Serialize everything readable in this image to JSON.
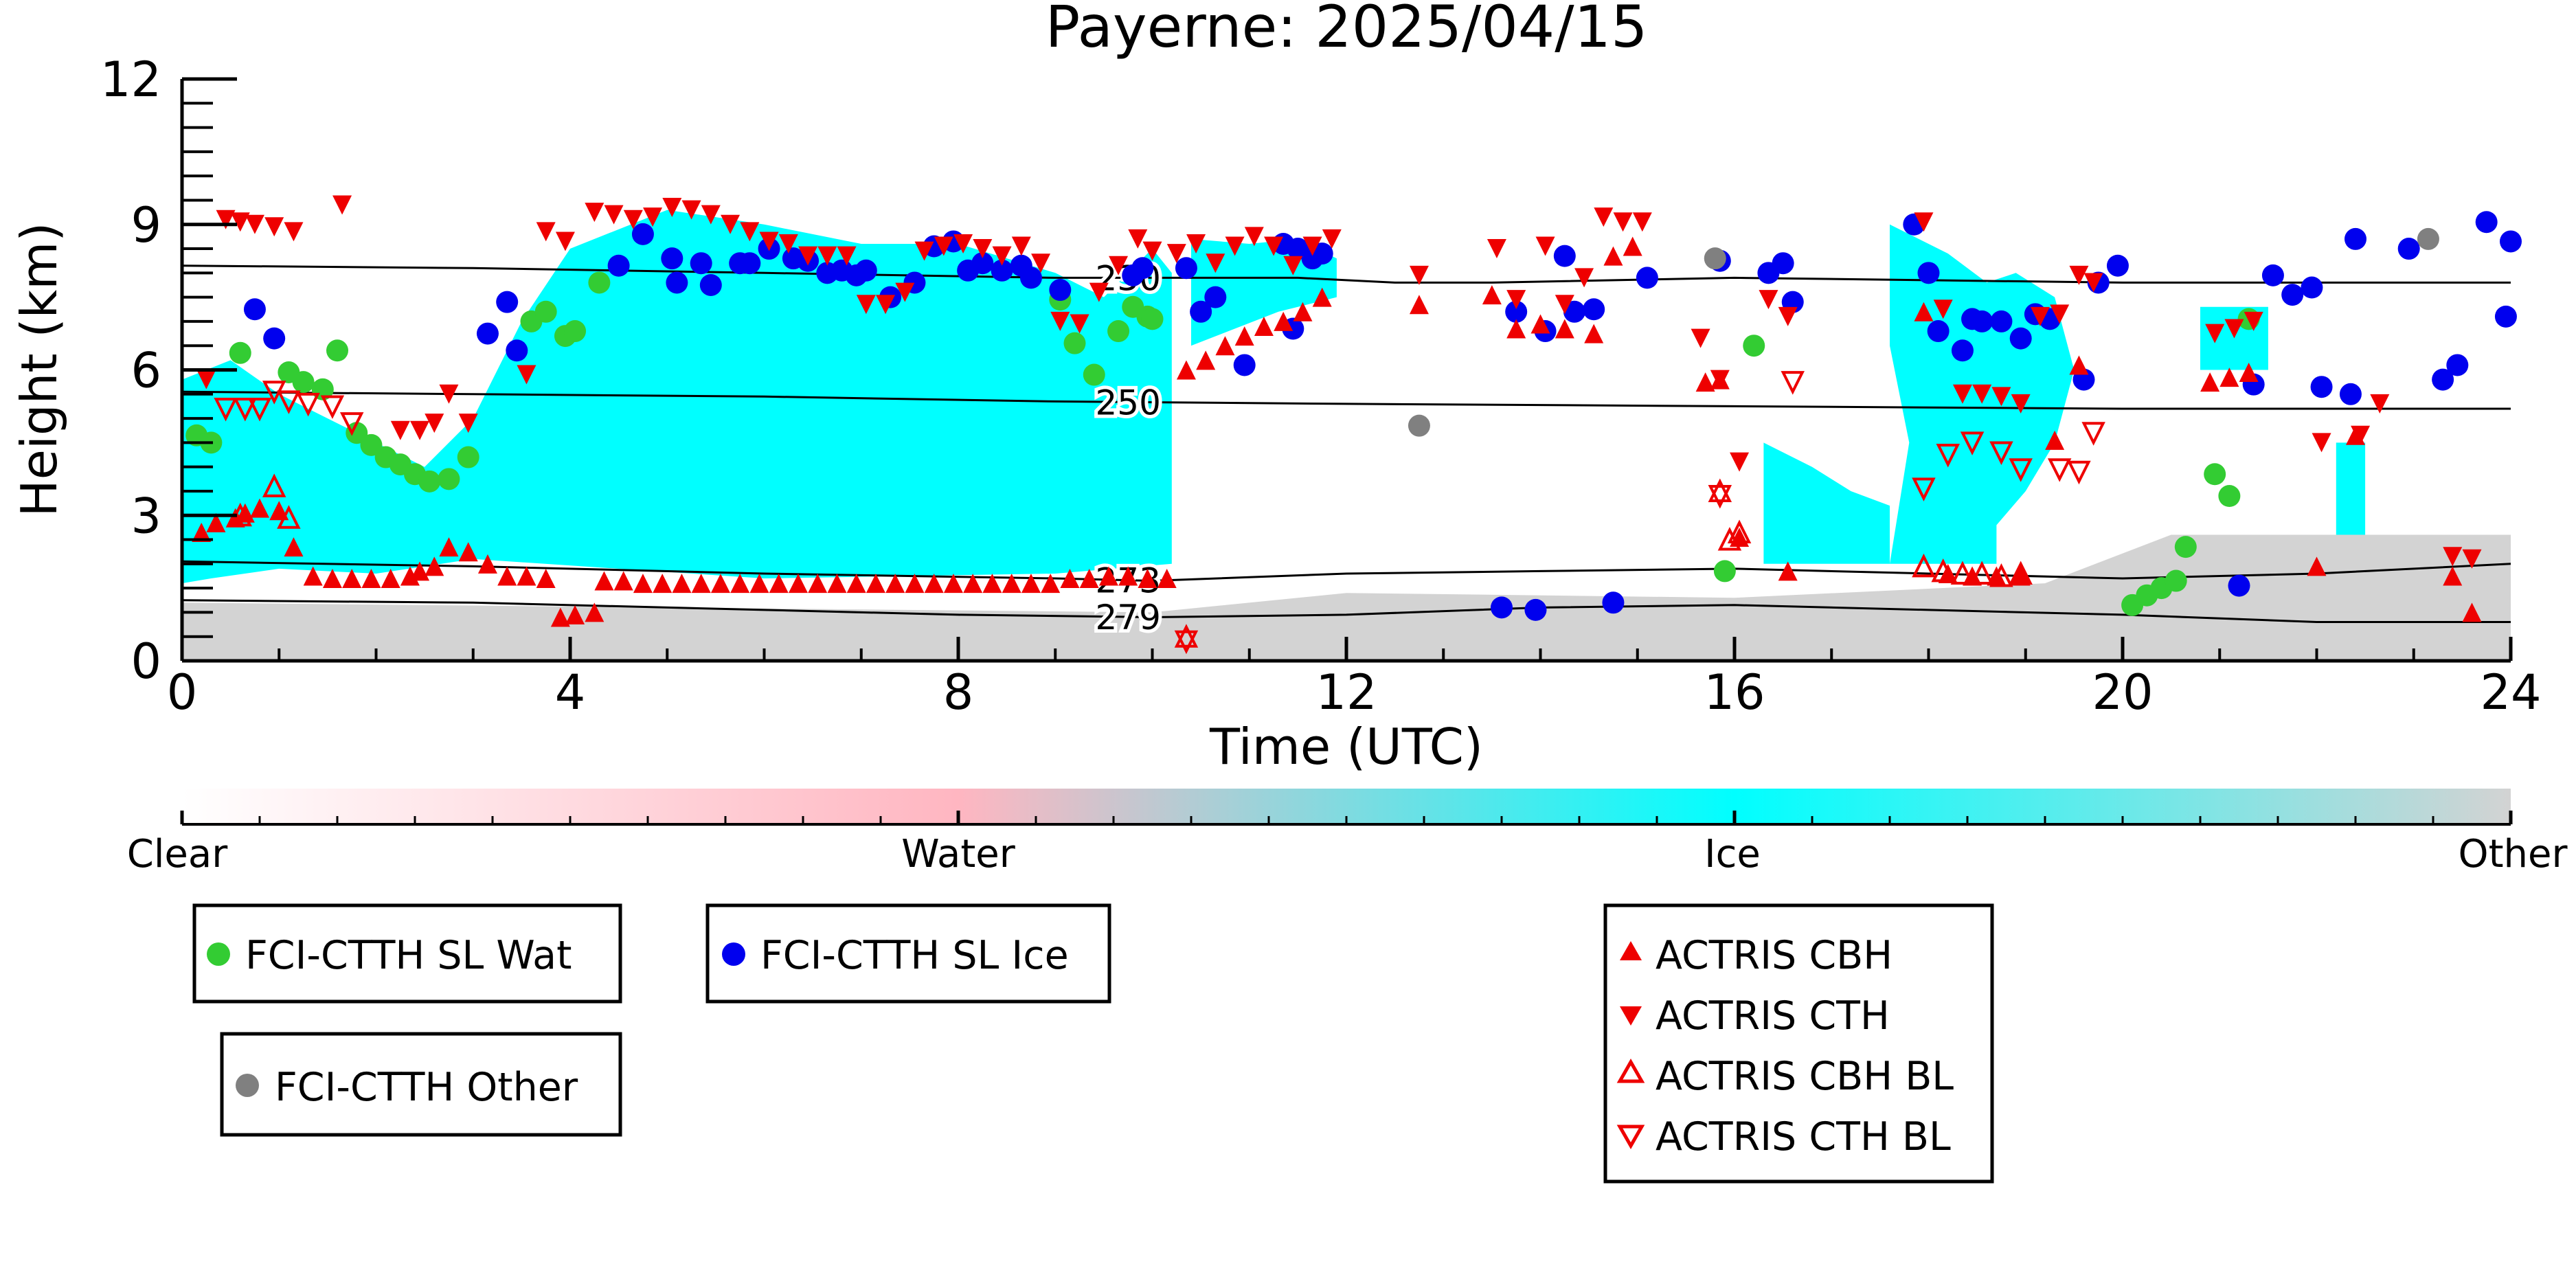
{
  "chart_data": {
    "type": "scatter",
    "title": "Payerne: 2025/04/15",
    "xlabel": "Time (UTC)",
    "ylabel": "Height (km)",
    "xlim": [
      0,
      24
    ],
    "ylim": [
      0,
      12
    ],
    "x_ticks": [
      "0",
      "4",
      "8",
      "12",
      "16",
      "20",
      "24"
    ],
    "y_ticks": [
      "0",
      "3",
      "6",
      "9",
      "12"
    ],
    "contours": [
      {
        "label": "230",
        "points": [
          [
            0,
            8.15
          ],
          [
            3,
            8.1
          ],
          [
            6,
            8.0
          ],
          [
            9,
            7.9
          ],
          [
            10,
            7.9
          ],
          [
            11.5,
            7.9
          ],
          [
            12.5,
            7.8
          ],
          [
            13.5,
            7.8
          ],
          [
            16,
            7.9
          ],
          [
            18,
            7.85
          ],
          [
            20,
            7.8
          ],
          [
            24,
            7.8
          ]
        ]
      },
      {
        "label": "250",
        "points": [
          [
            0,
            5.55
          ],
          [
            3,
            5.5
          ],
          [
            6,
            5.45
          ],
          [
            9,
            5.35
          ],
          [
            12,
            5.3
          ],
          [
            16,
            5.25
          ],
          [
            20,
            5.2
          ],
          [
            24,
            5.2
          ]
        ]
      },
      {
        "label": "273",
        "points": [
          [
            0,
            2.05
          ],
          [
            3,
            1.95
          ],
          [
            6,
            1.8
          ],
          [
            9,
            1.7
          ],
          [
            10,
            1.65
          ],
          [
            12,
            1.8
          ],
          [
            14,
            1.85
          ],
          [
            16,
            1.9
          ],
          [
            18,
            1.8
          ],
          [
            20,
            1.7
          ],
          [
            22,
            1.8
          ],
          [
            24,
            2.0
          ]
        ]
      },
      {
        "label": "279",
        "points": [
          [
            0,
            1.25
          ],
          [
            3,
            1.2
          ],
          [
            6,
            1.05
          ],
          [
            8,
            0.95
          ],
          [
            10,
            0.9
          ],
          [
            12,
            0.95
          ],
          [
            14,
            1.1
          ],
          [
            16,
            1.15
          ],
          [
            18,
            1.05
          ],
          [
            20,
            0.95
          ],
          [
            22,
            0.8
          ],
          [
            24,
            0.8
          ]
        ]
      }
    ],
    "colorbar": {
      "labels": [
        "Clear",
        "Water",
        "Ice",
        "Other"
      ],
      "stops": [
        "#ffffff",
        "#ffb6c1",
        "#00ffff",
        "#d3d3d3"
      ]
    },
    "background_regions": [
      {
        "class": "Ice",
        "polygon": [
          [
            0,
            5.8
          ],
          [
            0.5,
            6.2
          ],
          [
            1,
            5.5
          ],
          [
            1.5,
            5.0
          ],
          [
            2,
            4.5
          ],
          [
            2.5,
            4.0
          ],
          [
            3,
            5.0
          ],
          [
            3.5,
            7.0
          ],
          [
            4,
            8.5
          ],
          [
            5,
            9.3
          ],
          [
            6,
            9.0
          ],
          [
            7,
            8.6
          ],
          [
            8,
            8.6
          ],
          [
            9,
            8.0
          ],
          [
            9.5,
            7.5
          ],
          [
            10,
            8.5
          ],
          [
            10.2,
            8.0
          ],
          [
            10.2,
            2.0
          ],
          [
            9,
            1.8
          ],
          [
            6,
            1.7
          ],
          [
            3,
            2.1
          ],
          [
            2,
            1.8
          ],
          [
            1,
            1.9
          ],
          [
            0.3,
            1.7
          ],
          [
            0,
            1.6
          ]
        ]
      },
      {
        "class": "Ice",
        "polygon": [
          [
            16.3,
            4.5
          ],
          [
            16.8,
            4.0
          ],
          [
            17.2,
            3.5
          ],
          [
            17.6,
            3.2
          ],
          [
            17.6,
            2.0
          ],
          [
            16.3,
            2.0
          ]
        ]
      },
      {
        "class": "Ice",
        "polygon": [
          [
            17.6,
            9.0
          ],
          [
            18.2,
            8.4
          ],
          [
            18.6,
            7.8
          ],
          [
            18.9,
            8.0
          ],
          [
            19.3,
            7.5
          ],
          [
            19.5,
            6.0
          ],
          [
            19.3,
            4.5
          ],
          [
            19.0,
            3.5
          ],
          [
            18.7,
            2.8
          ],
          [
            18.7,
            2.0
          ],
          [
            17.6,
            2.0
          ],
          [
            17.8,
            4.5
          ],
          [
            17.6,
            6.5
          ]
        ]
      },
      {
        "class": "Ice",
        "polygon": [
          [
            10.4,
            8.7
          ],
          [
            11.0,
            8.6
          ],
          [
            11.5,
            8.7
          ],
          [
            11.9,
            8.3
          ],
          [
            11.9,
            7.5
          ],
          [
            11.3,
            7.2
          ],
          [
            10.4,
            6.5
          ]
        ]
      },
      {
        "class": "Ice",
        "polygon": [
          [
            20.8,
            7.3
          ],
          [
            21.5,
            7.3
          ],
          [
            21.5,
            6.0
          ],
          [
            20.8,
            6.0
          ]
        ]
      },
      {
        "class": "Ice",
        "polygon": [
          [
            22.2,
            4.5
          ],
          [
            22.5,
            4.5
          ],
          [
            22.5,
            2.2
          ],
          [
            22.2,
            2.2
          ]
        ]
      },
      {
        "class": "Other",
        "polygon": [
          [
            0,
            0
          ],
          [
            24,
            0
          ],
          [
            24,
            2.6
          ],
          [
            20.5,
            2.6
          ],
          [
            19.2,
            1.6
          ],
          [
            16,
            1.3
          ],
          [
            12,
            1.4
          ],
          [
            10,
            1.0
          ],
          [
            0,
            1.2
          ]
        ]
      },
      {
        "class": "Other",
        "polygon": [
          [
            20.5,
            1.5
          ],
          [
            24,
            1.5
          ],
          [
            24,
            2.5
          ],
          [
            20.5,
            2.5
          ]
        ]
      }
    ],
    "series": [
      {
        "name": "FCI-CTTH SL Wat",
        "color": "#33cc33",
        "marker": "circle",
        "x": [
          0.15,
          0.3,
          0.6,
          1.1,
          1.25,
          1.45,
          1.6,
          1.8,
          1.95,
          2.1,
          2.25,
          2.4,
          2.55,
          2.75,
          2.95,
          3.6,
          3.75,
          3.95,
          4.05,
          4.3,
          9.05,
          9.2,
          9.4,
          9.65,
          9.8,
          9.95,
          10.0,
          15.9,
          16.2,
          20.1,
          20.25,
          20.4,
          20.55,
          20.65,
          20.95,
          21.1,
          21.3
        ],
        "y": [
          4.65,
          4.5,
          6.35,
          5.95,
          5.75,
          5.6,
          6.4,
          4.7,
          4.45,
          4.2,
          4.05,
          3.85,
          3.7,
          3.75,
          4.2,
          7.0,
          7.2,
          6.7,
          6.8,
          7.8,
          7.45,
          6.55,
          5.9,
          6.8,
          7.3,
          7.1,
          7.05,
          1.85,
          6.5,
          1.15,
          1.35,
          1.5,
          1.65,
          2.35,
          3.85,
          3.4,
          7.05
        ]
      },
      {
        "name": "FCI-CTTH SL Ice",
        "color": "#0000ee",
        "marker": "circle",
        "x": [
          0.75,
          0.95,
          3.15,
          3.35,
          3.45,
          4.5,
          4.75,
          5.05,
          5.1,
          5.35,
          5.45,
          5.75,
          5.85,
          6.05,
          6.3,
          6.45,
          6.65,
          6.8,
          6.95,
          7.05,
          7.3,
          7.55,
          7.75,
          7.95,
          8.1,
          8.25,
          8.45,
          8.65,
          8.75,
          9.05,
          9.8,
          9.9,
          10.35,
          10.5,
          10.65,
          10.95,
          11.35,
          11.45,
          11.5,
          11.65,
          11.75,
          13.6,
          13.75,
          13.95,
          14.05,
          14.25,
          14.35,
          14.55,
          14.75,
          15.1,
          15.85,
          16.35,
          16.5,
          16.6,
          17.85,
          18.0,
          18.1,
          18.35,
          18.45,
          18.55,
          18.75,
          18.95,
          19.1,
          19.25,
          19.6,
          19.75,
          19.95,
          21.2,
          21.35,
          21.55,
          21.75,
          21.95,
          22.05,
          22.35,
          22.4,
          22.95,
          23.3,
          23.45,
          23.75,
          23.95,
          24.0
        ],
        "y": [
          7.25,
          6.65,
          6.75,
          7.4,
          6.4,
          8.15,
          8.8,
          8.3,
          7.8,
          8.2,
          7.75,
          8.2,
          8.2,
          8.5,
          8.3,
          8.25,
          8.0,
          8.05,
          7.95,
          8.05,
          7.5,
          7.8,
          8.55,
          8.65,
          8.05,
          8.2,
          8.05,
          8.15,
          7.9,
          7.65,
          7.95,
          8.1,
          8.1,
          7.2,
          7.5,
          6.1,
          8.6,
          6.85,
          8.5,
          8.3,
          8.4,
          1.1,
          7.2,
          1.05,
          6.8,
          8.35,
          7.2,
          7.25,
          1.2,
          7.9,
          8.25,
          8.0,
          8.2,
          7.4,
          9.0,
          8.0,
          6.8,
          6.4,
          7.05,
          7.0,
          7.0,
          6.65,
          7.15,
          7.05,
          5.8,
          7.8,
          8.15,
          1.55,
          5.7,
          7.95,
          7.55,
          7.7,
          5.65,
          5.5,
          8.7,
          8.5,
          5.8,
          6.1,
          9.05,
          7.1,
          8.65
        ]
      },
      {
        "name": "FCI-CTTH Other",
        "color": "#808080",
        "marker": "circle",
        "x": [
          12.75,
          15.8,
          23.15
        ],
        "y": [
          4.85,
          8.3,
          8.7
        ]
      },
      {
        "name": "ACTRIS CBH",
        "color": "#ee0000",
        "marker": "triangle-up",
        "filled": true,
        "x": [
          0.2,
          0.35,
          0.55,
          0.65,
          0.8,
          1.0,
          1.15,
          1.35,
          1.55,
          1.75,
          1.95,
          2.15,
          2.35,
          2.45,
          2.6,
          2.75,
          2.95,
          3.15,
          3.35,
          3.55,
          3.75,
          3.9,
          4.05,
          4.25,
          4.35,
          4.55,
          4.75,
          4.95,
          5.15,
          5.35,
          5.55,
          5.75,
          5.95,
          6.15,
          6.35,
          6.55,
          6.75,
          6.95,
          7.15,
          7.35,
          7.55,
          7.75,
          7.95,
          8.15,
          8.35,
          8.55,
          8.75,
          8.95,
          9.15,
          9.35,
          9.55,
          9.75,
          9.95,
          10.15,
          10.35,
          10.55,
          10.75,
          10.95,
          11.15,
          11.35,
          11.55,
          11.75,
          12.75,
          13.5,
          13.75,
          14.0,
          14.25,
          14.55,
          14.75,
          14.95,
          15.7,
          15.85,
          16.05,
          16.55,
          17.95,
          18.2,
          18.45,
          18.7,
          18.95,
          19.3,
          19.55,
          20.9,
          21.1,
          21.3,
          22.0,
          22.4,
          23.4,
          23.6
        ],
        "y": [
          2.65,
          2.85,
          2.95,
          3.05,
          3.15,
          3.1,
          2.35,
          1.75,
          1.7,
          1.7,
          1.7,
          1.7,
          1.75,
          1.85,
          1.95,
          2.35,
          2.25,
          2.0,
          1.75,
          1.75,
          1.7,
          0.9,
          0.95,
          1.0,
          1.65,
          1.65,
          1.6,
          1.6,
          1.6,
          1.6,
          1.6,
          1.6,
          1.6,
          1.6,
          1.6,
          1.6,
          1.6,
          1.6,
          1.6,
          1.6,
          1.6,
          1.6,
          1.6,
          1.6,
          1.6,
          1.6,
          1.6,
          1.6,
          1.7,
          1.7,
          1.75,
          1.75,
          1.7,
          1.7,
          6.0,
          6.2,
          6.5,
          6.7,
          6.9,
          7.0,
          7.2,
          7.5,
          7.35,
          7.55,
          6.85,
          6.95,
          6.85,
          6.75,
          8.35,
          8.55,
          5.75,
          5.8,
          2.55,
          1.85,
          7.2,
          1.8,
          1.75,
          1.75,
          1.75,
          4.55,
          6.1,
          5.75,
          5.85,
          5.95,
          1.95,
          4.65,
          1.75,
          1.0
        ]
      },
      {
        "name": "ACTRIS CTH",
        "color": "#ee0000",
        "marker": "triangle-down",
        "filled": true,
        "x": [
          0.25,
          0.45,
          0.6,
          0.75,
          0.95,
          1.15,
          1.65,
          2.25,
          2.45,
          2.6,
          2.75,
          2.95,
          3.55,
          3.75,
          3.95,
          4.25,
          4.45,
          4.65,
          4.85,
          5.05,
          5.25,
          5.45,
          5.65,
          5.85,
          6.05,
          6.25,
          6.45,
          6.65,
          6.85,
          7.05,
          7.25,
          7.45,
          7.65,
          7.85,
          8.05,
          8.25,
          8.45,
          8.65,
          8.85,
          9.05,
          9.25,
          9.45,
          9.65,
          9.85,
          10.0,
          10.25,
          10.45,
          10.65,
          10.85,
          11.05,
          11.25,
          11.45,
          11.65,
          11.85,
          12.75,
          13.55,
          13.75,
          14.05,
          14.25,
          14.45,
          14.65,
          14.85,
          15.05,
          15.65,
          15.85,
          16.05,
          16.35,
          16.55,
          17.95,
          18.15,
          18.35,
          18.55,
          18.75,
          18.95,
          19.15,
          19.35,
          19.55,
          19.7,
          20.95,
          21.15,
          21.35,
          22.05,
          22.45,
          22.65,
          23.4,
          23.6
        ],
        "y": [
          5.8,
          9.1,
          9.05,
          9.0,
          8.95,
          8.85,
          9.4,
          4.75,
          4.75,
          4.9,
          5.5,
          4.9,
          5.9,
          8.85,
          8.65,
          9.25,
          9.2,
          9.1,
          9.15,
          9.35,
          9.3,
          9.2,
          9.0,
          8.85,
          8.65,
          8.6,
          8.35,
          8.35,
          8.35,
          7.35,
          7.35,
          7.6,
          8.45,
          8.55,
          8.6,
          8.5,
          8.35,
          8.55,
          8.2,
          7.0,
          6.95,
          7.6,
          8.15,
          8.7,
          8.45,
          8.4,
          8.6,
          8.2,
          8.55,
          8.75,
          8.55,
          8.15,
          8.55,
          8.7,
          7.95,
          8.5,
          7.45,
          8.55,
          7.35,
          7.9,
          9.15,
          9.05,
          9.05,
          6.65,
          5.8,
          4.1,
          7.45,
          7.1,
          9.05,
          7.25,
          5.5,
          5.5,
          5.45,
          5.3,
          7.1,
          7.15,
          7.95,
          7.8,
          6.75,
          6.85,
          7.0,
          4.5,
          4.65,
          5.3,
          2.15,
          2.1
        ]
      },
      {
        "name": "ACTRIS CBH BL",
        "color": "#ee0000",
        "marker": "triangle-up",
        "filled": false,
        "x": [
          0.6,
          0.95,
          1.1,
          10.35,
          15.85,
          15.95,
          16.05,
          17.95,
          18.15,
          18.35,
          18.55,
          18.75,
          18.95
        ],
        "y": [
          3.0,
          3.6,
          2.95,
          0.5,
          3.5,
          2.5,
          2.65,
          1.95,
          1.85,
          1.8,
          1.8,
          1.75,
          1.8
        ]
      },
      {
        "name": "ACTRIS CTH BL",
        "color": "#ee0000",
        "marker": "triangle-down",
        "filled": false,
        "x": [
          0.45,
          0.65,
          0.8,
          0.95,
          1.1,
          1.3,
          1.55,
          1.75,
          10.35,
          15.85,
          16.6,
          17.95,
          18.2,
          18.45,
          18.75,
          18.95,
          19.35,
          19.55,
          19.7
        ],
        "y": [
          5.2,
          5.2,
          5.2,
          5.55,
          5.35,
          5.3,
          5.25,
          4.9,
          0.4,
          3.4,
          5.75,
          3.55,
          4.25,
          4.5,
          4.3,
          3.95,
          3.95,
          3.9,
          4.7
        ]
      }
    ],
    "legend_placement": "below",
    "grid": false
  }
}
